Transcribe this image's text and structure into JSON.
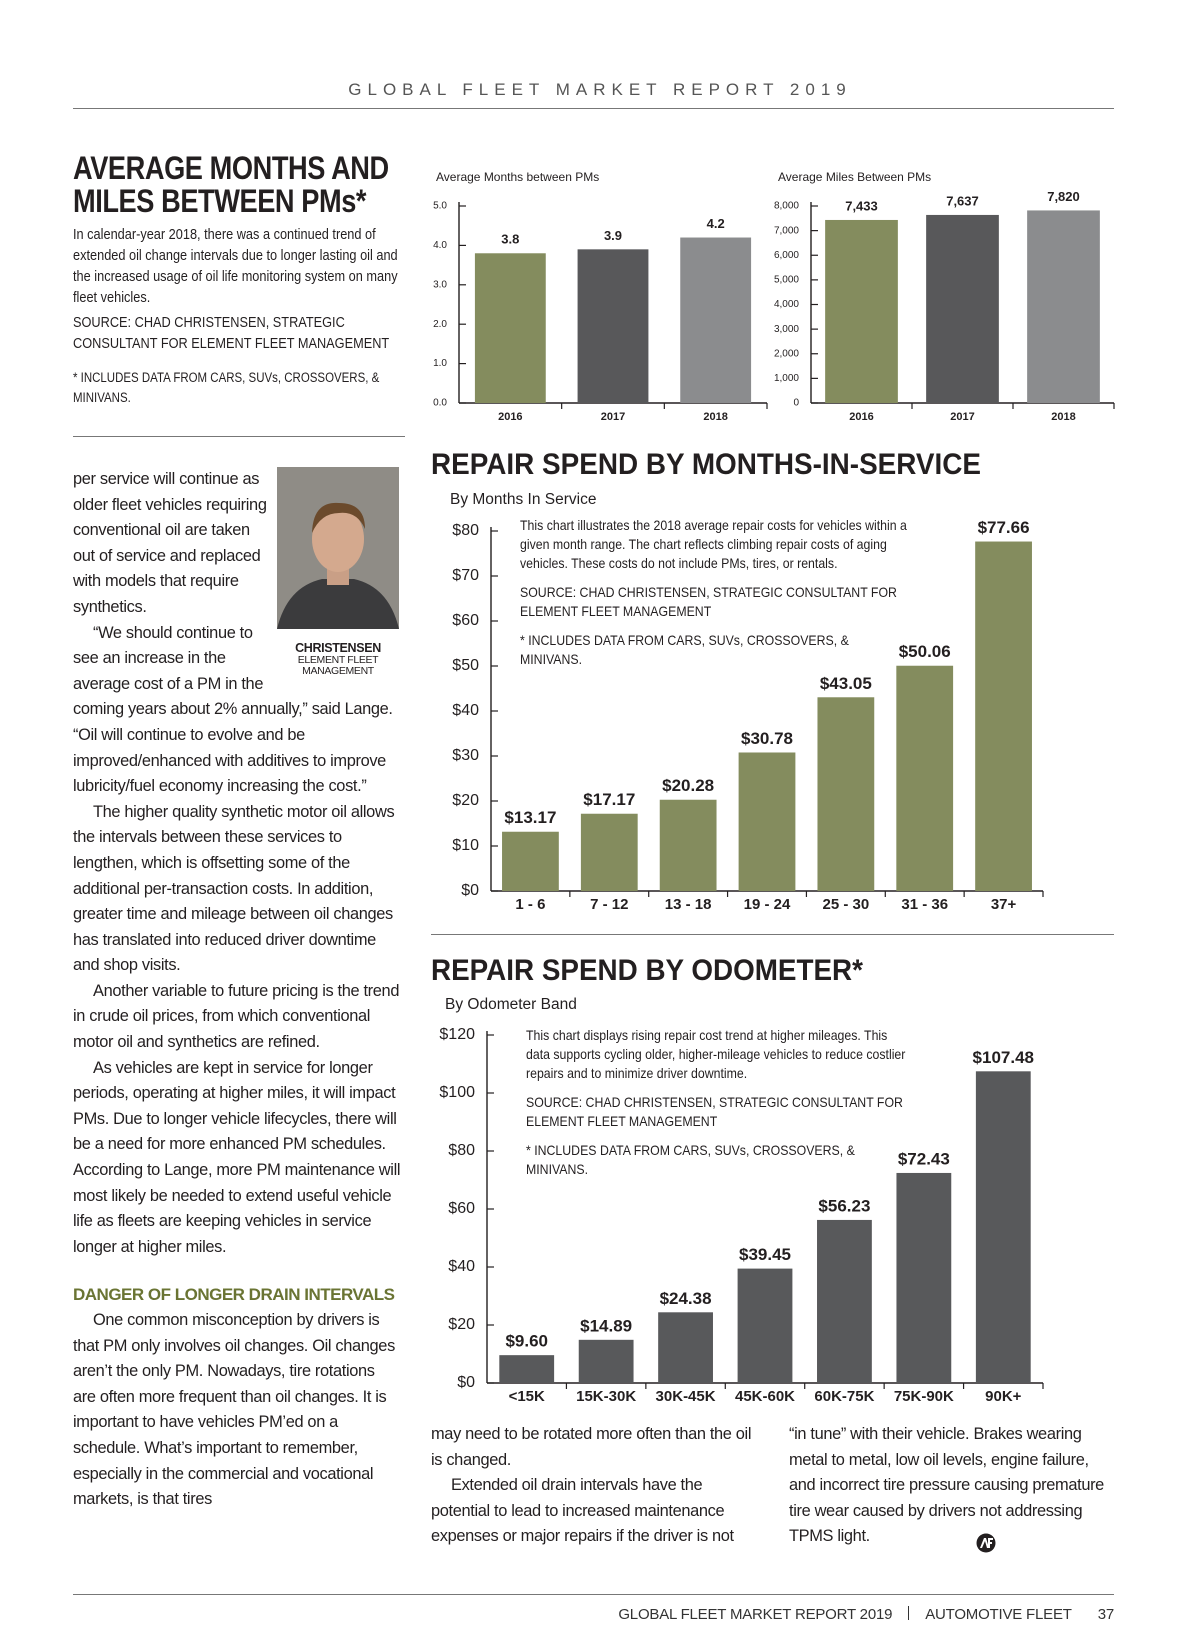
{
  "header": {
    "title": "GLOBAL FLEET MARKET REPORT 2019"
  },
  "sidebar": {
    "title": "AVERAGE MONTHS AND MILES BETWEEN PMs*",
    "body": "In calendar-year 2018, there was a continued trend of extended oil change intervals due to longer lasting oil and the increased usage of oil life monitoring system on many fleet vehicles.",
    "source": "SOURCE: CHAD CHRISTENSEN, STRATEGIC CONSULTANT FOR ELEMENT FLEET MANAGEMENT",
    "note": "* INCLUDES DATA FROM CARS, SUVs, CROSSOVERS, & MINIVANS."
  },
  "photo": {
    "name": "CHRISTENSEN",
    "affiliation": "ELEMENT FLEET MANAGEMENT"
  },
  "article": {
    "column_1": {
      "paragraphs": [
        "per service will continue as older fleet vehicles requiring conventional oil are taken out of service and replaced with models that require synthetics.",
        "“We should continue to see an increase in the average cost of a PM in the coming years about 2% annually,” said Lange. “Oil will continue to evolve and be improved/enhanced with additives to improve lubricity/fuel economy increasing the cost.”",
        "The higher quality synthetic motor oil allows the intervals between these services to lengthen, which is offsetting some of the additional per-transaction costs. In addition, greater time and mileage between oil changes has translated into reduced driver downtime and shop visits.",
        "Another variable to future pricing is the trend in crude oil prices, from which conventional motor oil and synthetics are refined.",
        "As vehicles are kept in service for longer periods, operating at higher miles, it will impact PMs. Due to longer vehicle lifecycles, there will be a need for more enhanced PM schedules. According to Lange, more PM maintenance will most likely be needed to extend useful vehicle life as fleets are keeping vehicles in service longer at higher miles."
      ],
      "subhead": "DANGER OF LONGER DRAIN INTERVALS",
      "after_subhead": [
        "One common misconception by drivers is that PM only involves oil changes. Oil changes aren’t the only PM. Nowadays, tire rotations are often more frequent than oil changes. It is important to have vehicles PM’ed on a schedule. What’s important to remember, especially in the commercial and vocational markets, is that tires"
      ]
    },
    "column_2": {
      "paragraphs": [
        "may need to be rotated more often than the oil is changed.",
        "Extended oil drain intervals have the potential to lead to increased maintenance expenses or major repairs if the driver is not"
      ]
    },
    "column_3": {
      "paragraphs": [
        "“in tune” with their vehicle. Brakes wearing metal to metal, low oil levels, engine failure, and incorrect tire pressure causing premature tire wear caused by drivers not addressing TPMS light."
      ]
    }
  },
  "footer": {
    "publication": "GLOBAL FLEET MARKET REPORT 2019",
    "magazine": "AUTOMOTIVE FLEET",
    "page": "37"
  },
  "chart_data": [
    {
      "type": "bar",
      "title": "Average Months between PMs",
      "categories": [
        "2016",
        "2017",
        "2018"
      ],
      "values": [
        3.8,
        3.9,
        4.2
      ],
      "colors": [
        "#848c5e",
        "#58585a",
        "#8b8c8e"
      ],
      "ylim": [
        0,
        5
      ],
      "yticks": [
        {
          "value": 0,
          "label": "0.0"
        },
        {
          "value": 1,
          "label": "1.0"
        },
        {
          "value": 2,
          "label": "2.0"
        },
        {
          "value": 3,
          "label": "3.0"
        },
        {
          "value": 4,
          "label": "4.0"
        },
        {
          "value": 5,
          "label": "5.0"
        }
      ]
    },
    {
      "type": "bar",
      "title": "Average Miles Between PMs",
      "categories": [
        "2016",
        "2017",
        "2018"
      ],
      "values": [
        7433,
        7637,
        7820
      ],
      "value_labels": [
        "7,433",
        "7,637",
        "7,820"
      ],
      "colors": [
        "#848c5e",
        "#58585a",
        "#8b8c8e"
      ],
      "ylim": [
        0,
        8000
      ],
      "yticks": [
        0,
        {
          "value": 1000,
          "label": "1,000"
        },
        {
          "value": 2000,
          "label": "2,000"
        },
        {
          "value": 3000,
          "label": "3,000"
        },
        {
          "value": 4000,
          "label": "4,000"
        },
        {
          "value": 5000,
          "label": "5,000"
        },
        {
          "value": 6000,
          "label": "6,000"
        },
        {
          "value": 7000,
          "label": "7,000"
        },
        {
          "value": 8000,
          "label": "8,000"
        }
      ]
    },
    {
      "type": "bar",
      "title": "REPAIR SPEND BY MONTHS-IN-SERVICE",
      "subtitle": "By Months In Service",
      "annotations": [
        "This chart illustrates the 2018 average repair costs for vehicles within a given month range. The chart reflects climbing repair costs of aging vehicles. These costs do not include PMs, tires, or rentals.",
        "SOURCE: CHAD CHRISTENSEN, STRATEGIC CONSULTANT FOR ELEMENT FLEET MANAGEMENT",
        "* INCLUDES DATA FROM CARS, SUVs, CROSSOVERS, & MINIVANS."
      ],
      "categories": [
        "1 - 6",
        "7 - 12",
        "13 - 18",
        "19 - 24",
        "25 - 30",
        "31 - 36",
        "37+"
      ],
      "values": [
        13.17,
        17.17,
        20.28,
        30.78,
        43.05,
        50.06,
        77.66
      ],
      "value_labels": [
        "$13.17",
        "$17.17",
        "$20.28",
        "$30.78",
        "$43.05",
        "$50.06",
        "$77.66"
      ],
      "color": "#848c5e",
      "ylim": [
        0,
        80
      ],
      "yticks": [
        {
          "value": 0,
          "label": "$0"
        },
        {
          "value": 10,
          "label": "$10"
        },
        {
          "value": 20,
          "label": "$20"
        },
        {
          "value": 30,
          "label": "$30"
        },
        {
          "value": 40,
          "label": "$40"
        },
        {
          "value": 50,
          "label": "$50"
        },
        {
          "value": 60,
          "label": "$60"
        },
        {
          "value": 70,
          "label": "$70"
        },
        {
          "value": 80,
          "label": "$80"
        }
      ]
    },
    {
      "type": "bar",
      "title": "REPAIR SPEND BY ODOMETER*",
      "subtitle": "By Odometer Band",
      "annotations": [
        "This chart displays rising repair cost trend at higher mileages. This data supports cycling older, higher-mileage vehicles to reduce costlier repairs and to minimize driver downtime.",
        "SOURCE: CHAD CHRISTENSEN, STRATEGIC CONSULTANT FOR ELEMENT FLEET MANAGEMENT",
        "* INCLUDES DATA FROM CARS, SUVs, CROSSOVERS, & MINIVANS."
      ],
      "categories": [
        "<15K",
        "15K-30K",
        "30K-45K",
        "45K-60K",
        "60K-75K",
        "75K-90K",
        "90K+"
      ],
      "values": [
        9.6,
        14.89,
        24.38,
        39.45,
        56.23,
        72.43,
        107.48
      ],
      "value_labels": [
        "$9.60",
        "$14.89",
        "$24.38",
        "$39.45",
        "$56.23",
        "$72.43",
        "$107.48"
      ],
      "color": "#58595b",
      "ylim": [
        0,
        120
      ],
      "yticks": [
        {
          "value": 0,
          "label": "$0"
        },
        {
          "value": 20,
          "label": "$20"
        },
        {
          "value": 40,
          "label": "$40"
        },
        {
          "value": 60,
          "label": "$60"
        },
        {
          "value": 80,
          "label": "$80"
        },
        {
          "value": 100,
          "label": "$100"
        },
        {
          "value": 120,
          "label": "$120"
        }
      ]
    }
  ]
}
